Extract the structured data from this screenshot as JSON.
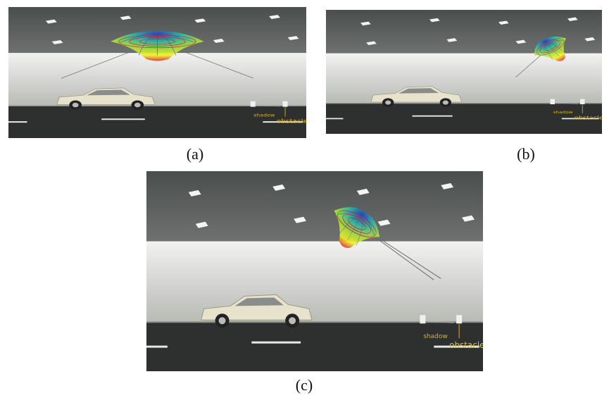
{
  "figure": {
    "panels": [
      {
        "caption": "(a)",
        "shadow_label": "shadow",
        "obstacle_label": "obstacle"
      },
      {
        "caption": "(b)",
        "shadow_label": "shadow",
        "obstacle_label": "obstacle"
      },
      {
        "caption": "(c)",
        "shadow_label": "shadow",
        "obstacle_label": "obstacle"
      }
    ]
  }
}
